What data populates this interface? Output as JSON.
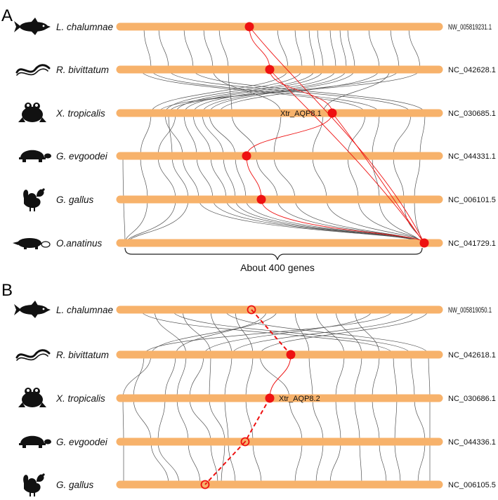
{
  "panels": [
    {
      "letter": "A",
      "rows": [
        {
          "species": "L. chalumnae",
          "chromosome": "NW_005819231.1",
          "silhouette": "coelacanth-icon"
        },
        {
          "species": "R. bivittatum",
          "chromosome": "NC_042628.1",
          "silhouette": "caecilian-icon"
        },
        {
          "species": "X. tropicalis",
          "chromosome": "NC_030685.1",
          "silhouette": "frog-icon"
        },
        {
          "species": "G. evgoodei",
          "chromosome": "NC_044331.1",
          "silhouette": "turtle-icon"
        },
        {
          "species": "G. gallus",
          "chromosome": "NC_006101.5",
          "silhouette": "chicken-icon"
        },
        {
          "species": "O.anatinus",
          "chromosome": "NC_041729.1",
          "silhouette": "platypus-icon"
        }
      ],
      "gene_label": "Xtr_AQP8.1",
      "region_label": "About 400 genes"
    },
    {
      "letter": "B",
      "rows": [
        {
          "species": "L. chalumnae",
          "chromosome": "NW_005819050.1",
          "silhouette": "coelacanth-icon"
        },
        {
          "species": "R. bivittatum",
          "chromosome": "NC_042618.1",
          "silhouette": "caecilian-icon"
        },
        {
          "species": "X. tropicalis",
          "chromosome": "NC_030686.1",
          "silhouette": "frog-icon"
        },
        {
          "species": "G. evgoodei",
          "chromosome": "NC_044336.1",
          "silhouette": "turtle-icon"
        },
        {
          "species": "G. gallus",
          "chromosome": "NC_006105.5",
          "silhouette": "chicken-icon"
        }
      ],
      "gene_label": "Xtr_AQP8.2"
    }
  ],
  "colors": {
    "chromosome": "#F7B26B",
    "gene_marker": "#EE1111",
    "synteny_line": "#333333",
    "ortholog_link": "#EE1111"
  }
}
